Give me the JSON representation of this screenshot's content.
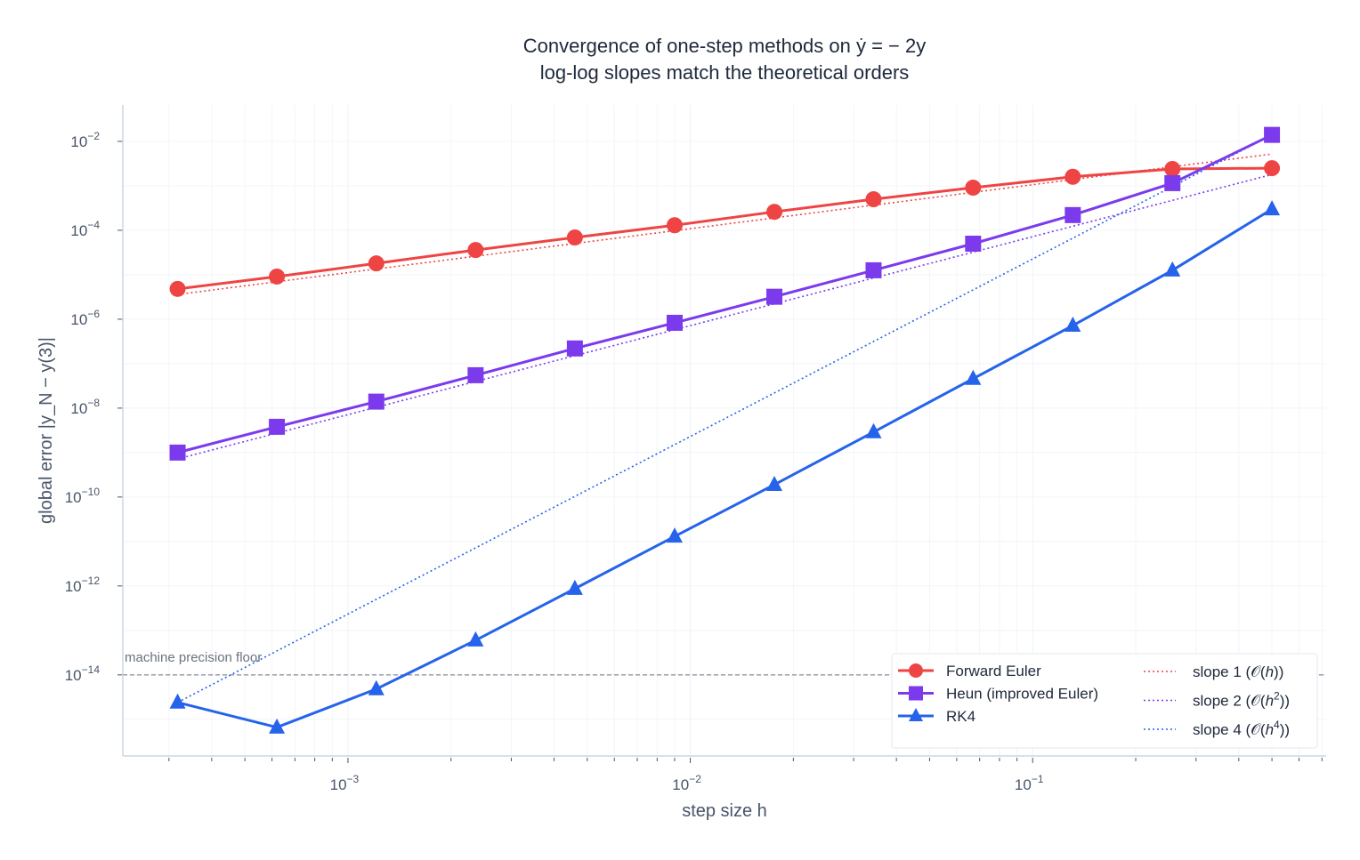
{
  "chart_data": {
    "type": "line",
    "title": "Convergence of one-step methods on ẏ = − 2y",
    "subtitle": "log-log slopes match the theoretical orders",
    "xlabel": "step size h",
    "ylabel": "global error  |y_N − y(3)|",
    "xscale": "log",
    "yscale": "log",
    "xlim": [
      0.00022,
      0.72
    ],
    "ylim": [
      1.5e-16,
      0.066
    ],
    "grid": true,
    "legend_position": "bottom-right",
    "x_tick_labels": [
      "10^-3",
      "10^-2",
      "10^-1"
    ],
    "y_tick_labels": [
      "10^-2",
      "10^-4",
      "10^-6",
      "10^-8",
      "10^-10",
      "10^-12",
      "10^-14"
    ],
    "x": [
      0.000318,
      0.00062,
      0.00121,
      0.00236,
      0.0046,
      0.009,
      0.0176,
      0.0343,
      0.067,
      0.131,
      0.256,
      0.5
    ],
    "series": [
      {
        "name": "Forward Euler",
        "color": "#ef4444",
        "marker": "circle",
        "values": [
          4.8e-06,
          9.1e-06,
          1.8e-05,
          3.6e-05,
          6.9e-05,
          0.00013,
          0.00026,
          0.0005,
          0.00091,
          0.0016,
          0.0024,
          0.0025
        ]
      },
      {
        "name": "Heun (improved Euler)",
        "color": "#7c3aed",
        "marker": "square",
        "values": [
          1e-09,
          3.8e-09,
          1.4e-08,
          5.5e-08,
          2.2e-07,
          8.3e-07,
          3.2e-06,
          1.26e-05,
          5e-05,
          0.00022,
          0.00115,
          0.014
        ]
      },
      {
        "name": "RK4",
        "color": "#2563eb",
        "marker": "triangle",
        "values": [
          2.4e-15,
          6.6e-16,
          4.8e-15,
          6e-14,
          8.7e-13,
          1.3e-11,
          1.9e-10,
          2.9e-09,
          4.6e-08,
          7.2e-07,
          1.26e-05,
          0.0003
        ]
      }
    ],
    "reference_lines": [
      {
        "name": "slope 1",
        "order_label": "h",
        "power": "",
        "color": "#ef4444",
        "h": [
          0.000318,
          0.5
        ],
        "error": [
          3.6e-06,
          0.0052
        ]
      },
      {
        "name": "slope 2",
        "order_label": "h",
        "power": "2",
        "color": "#7c3aed",
        "h": [
          0.000318,
          0.5
        ],
        "error": [
          7.2e-10,
          0.0018
        ]
      },
      {
        "name": "slope 4",
        "order_label": "h",
        "power": "4",
        "color": "#2563eb",
        "h": [
          0.000318,
          0.5
        ],
        "error": [
          2.4e-15,
          0.014
        ]
      }
    ],
    "annotations": [
      {
        "text": "machine precision floor",
        "y": 1e-14,
        "color": "#6b7280"
      }
    ]
  }
}
